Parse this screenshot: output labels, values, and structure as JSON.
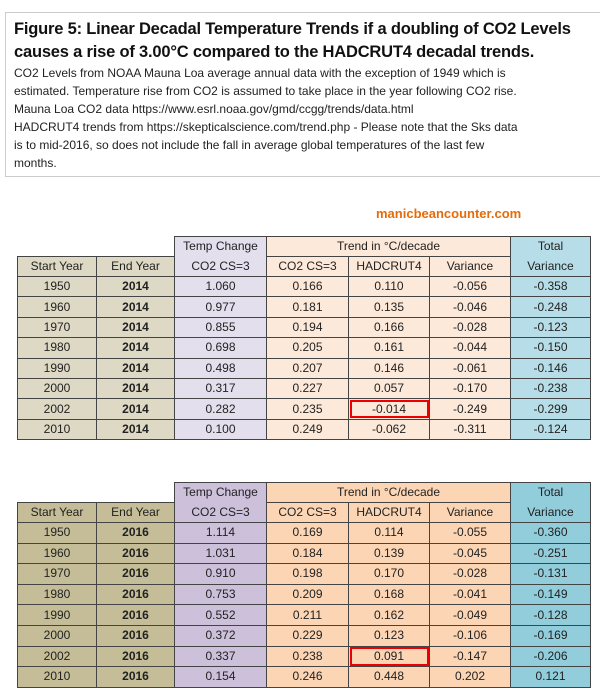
{
  "caption": {
    "title_line1": "Figure 5:  Linear Decadal Temperature Trends if a doubling of CO2 Levels",
    "title_line2": "causes a rise of 3.00°C compared to the HADCRUT4 decadal trends.",
    "lines": [
      "CO2 Levels  from NOAA Mauna Loa average annual data with the exception of 1949  which is",
      "estimated. Temperature rise from CO2 is assumed to take place in the year following CO2 rise.",
      "Mauna  Loa CO2 data https://www.esrl.noaa.gov/gmd/ccgg/trends/data.html",
      "HADCRUT4  trends from https://skepticalscience.com/trend.php  - Please note that the Sks data",
      "is to mid-2016,  so does not include the fall in average global temperatures of the  last few",
      "months."
    ]
  },
  "watermark": "manicbeancounter.com",
  "headers": {
    "temp_change": "Temp Change",
    "trend": "Trend in °C/decade",
    "total": "Total",
    "start_year": "Start Year",
    "end_year": "End Year",
    "co2_cs3": "CO2 CS=3",
    "trend_co2": "CO2 CS=3",
    "hadcrut4": "HADCRUT4",
    "variance": "Variance",
    "total_variance": "Variance"
  },
  "tables": [
    {
      "highlight_row": 6,
      "rows": [
        [
          "1950",
          "2014",
          "1.060",
          "0.166",
          "0.110",
          "-0.056",
          "-0.358"
        ],
        [
          "1960",
          "2014",
          "0.977",
          "0.181",
          "0.135",
          "-0.046",
          "-0.248"
        ],
        [
          "1970",
          "2014",
          "0.855",
          "0.194",
          "0.166",
          "-0.028",
          "-0.123"
        ],
        [
          "1980",
          "2014",
          "0.698",
          "0.205",
          "0.161",
          "-0.044",
          "-0.150"
        ],
        [
          "1990",
          "2014",
          "0.498",
          "0.207",
          "0.146",
          "-0.061",
          "-0.146"
        ],
        [
          "2000",
          "2014",
          "0.317",
          "0.227",
          "0.057",
          "-0.170",
          "-0.238"
        ],
        [
          "2002",
          "2014",
          "0.282",
          "0.235",
          "-0.014",
          "-0.249",
          "-0.299"
        ],
        [
          "2010",
          "2014",
          "0.100",
          "0.249",
          "-0.062",
          "-0.311",
          "-0.124"
        ]
      ]
    },
    {
      "highlight_row": 6,
      "rows": [
        [
          "1950",
          "2016",
          "1.114",
          "0.169",
          "0.114",
          "-0.055",
          "-0.360"
        ],
        [
          "1960",
          "2016",
          "1.031",
          "0.184",
          "0.139",
          "-0.045",
          "-0.251"
        ],
        [
          "1970",
          "2016",
          "0.910",
          "0.198",
          "0.170",
          "-0.028",
          "-0.131"
        ],
        [
          "1980",
          "2016",
          "0.753",
          "0.209",
          "0.168",
          "-0.041",
          "-0.149"
        ],
        [
          "1990",
          "2016",
          "0.552",
          "0.211",
          "0.162",
          "-0.049",
          "-0.128"
        ],
        [
          "2000",
          "2016",
          "0.372",
          "0.229",
          "0.123",
          "-0.106",
          "-0.169"
        ],
        [
          "2002",
          "2016",
          "0.337",
          "0.238",
          "0.091",
          "-0.147",
          "-0.206"
        ],
        [
          "2010",
          "2016",
          "0.154",
          "0.246",
          "0.448",
          "0.202",
          "0.121"
        ]
      ]
    }
  ]
}
